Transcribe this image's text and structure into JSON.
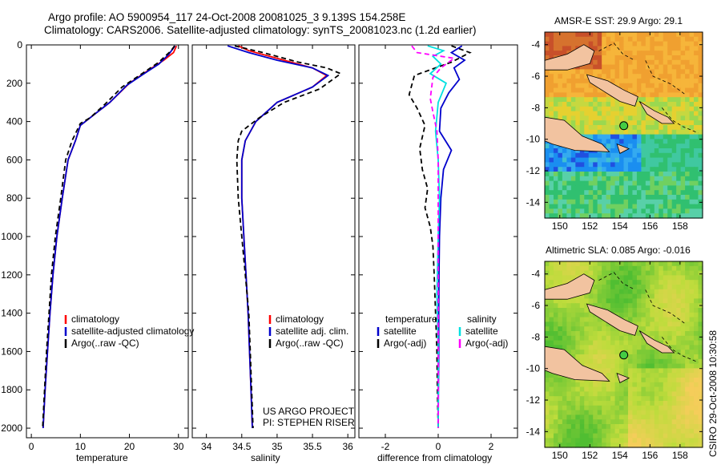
{
  "header": {
    "title_line1": "Argo profile: AO 5900954_117 24-Oct-2008 20081025_3 9.139S 154.258E",
    "title_line2": "Climatology: CARS2006. Satellite-adjusted climatology: synTS_20081023.nc (1.2d earlier)"
  },
  "credits": {
    "line1": "US ARGO PROJECT",
    "line2": "PI: STEPHEN RISER"
  },
  "side_stamp": "CSIRO 29-Oct-2008 10:30:58",
  "colors": {
    "climatology": "#ff0000",
    "satellite": "#0000cc",
    "argo": "#000000",
    "sat_salt": "#00e0e0",
    "argo_salt": "#ff00ff",
    "land": "#f2c3a0"
  },
  "chart_data": [
    {
      "type": "line",
      "name": "temperature-panel",
      "xlabel": "temperature",
      "ylabel": "",
      "xlim": [
        -1,
        32
      ],
      "ylim": [
        2050,
        0
      ],
      "xticks": [
        0,
        10,
        20,
        30
      ],
      "yticks": [
        0,
        200,
        400,
        600,
        800,
        1000,
        1200,
        1400,
        1600,
        1800,
        2000
      ],
      "legend": [
        "climatology",
        "satellite-adjusted climatology",
        "Argo(..raw -QC)"
      ],
      "series": [
        {
          "name": "climatology",
          "color": "red",
          "points": [
            [
              29.6,
              5
            ],
            [
              29,
              40
            ],
            [
              27,
              80
            ],
            [
              24,
              130
            ],
            [
              20,
              200
            ],
            [
              16,
              300
            ],
            [
              12,
              380
            ],
            [
              10,
              420
            ],
            [
              9,
              500
            ],
            [
              7.5,
              600
            ],
            [
              6.3,
              800
            ],
            [
              5.2,
              1000
            ],
            [
              4.4,
              1200
            ],
            [
              3.8,
              1400
            ],
            [
              3.3,
              1600
            ],
            [
              2.8,
              1800
            ],
            [
              2.4,
              2000
            ]
          ]
        },
        {
          "name": "satellite-adjusted climatology",
          "color": "blue",
          "points": [
            [
              29.3,
              5
            ],
            [
              28,
              50
            ],
            [
              26,
              100
            ],
            [
              23,
              150
            ],
            [
              19.5,
              210
            ],
            [
              16,
              300
            ],
            [
              12,
              380
            ],
            [
              10,
              420
            ],
            [
              9,
              500
            ],
            [
              7.5,
              600
            ],
            [
              6.3,
              800
            ],
            [
              5.2,
              1000
            ],
            [
              4.4,
              1200
            ],
            [
              3.8,
              1400
            ],
            [
              3.3,
              1600
            ],
            [
              2.8,
              1800
            ],
            [
              2.4,
              2000
            ]
          ]
        },
        {
          "name": "Argo(..raw -QC)",
          "color": "black",
          "points": [
            [
              29.2,
              5
            ],
            [
              28.5,
              30
            ],
            [
              26,
              90
            ],
            [
              22,
              160
            ],
            [
              18.5,
              220
            ],
            [
              15,
              310
            ],
            [
              12,
              380
            ],
            [
              10,
              410
            ],
            [
              8.3,
              500
            ],
            [
              7,
              600
            ],
            [
              6,
              800
            ],
            [
              4.9,
              1000
            ],
            [
              4.1,
              1200
            ],
            [
              3.6,
              1400
            ],
            [
              3.1,
              1600
            ],
            [
              2.7,
              1800
            ],
            [
              2.3,
              2000
            ]
          ]
        }
      ]
    },
    {
      "type": "line",
      "name": "salinity-panel",
      "xlabel": "salinity",
      "xlim": [
        33.8,
        36.1
      ],
      "ylim": [
        2050,
        0
      ],
      "xticks": [
        34,
        34.5,
        35,
        35.5,
        36
      ],
      "legend": [
        "climatology",
        "satellite adj. clim.",
        "Argo(..raw -QC)"
      ],
      "series": [
        {
          "name": "climatology",
          "color": "red",
          "points": [
            [
              34.45,
              5
            ],
            [
              34.6,
              30
            ],
            [
              35,
              70
            ],
            [
              35.5,
              120
            ],
            [
              35.7,
              160
            ],
            [
              35.5,
              220
            ],
            [
              35.0,
              300
            ],
            [
              34.7,
              400
            ],
            [
              34.55,
              500
            ],
            [
              34.5,
              600
            ],
            [
              34.5,
              800
            ],
            [
              34.53,
              1000
            ],
            [
              34.56,
              1200
            ],
            [
              34.59,
              1400
            ],
            [
              34.61,
              1600
            ],
            [
              34.63,
              1800
            ],
            [
              34.65,
              2000
            ]
          ]
        },
        {
          "name": "satellite adj. clim.",
          "color": "blue",
          "points": [
            [
              34.3,
              5
            ],
            [
              34.6,
              40
            ],
            [
              35,
              80
            ],
            [
              35.5,
              120
            ],
            [
              35.72,
              160
            ],
            [
              35.5,
              220
            ],
            [
              35.0,
              300
            ],
            [
              34.7,
              400
            ],
            [
              34.55,
              500
            ],
            [
              34.5,
              600
            ],
            [
              34.5,
              800
            ],
            [
              34.53,
              1000
            ],
            [
              34.56,
              1200
            ],
            [
              34.59,
              1400
            ],
            [
              34.61,
              1600
            ],
            [
              34.63,
              1800
            ],
            [
              34.65,
              2000
            ]
          ]
        },
        {
          "name": "Argo(..raw -QC)",
          "color": "black",
          "points": [
            [
              34.4,
              5
            ],
            [
              34.8,
              40
            ],
            [
              35.3,
              90
            ],
            [
              35.7,
              120
            ],
            [
              35.9,
              150
            ],
            [
              35.6,
              230
            ],
            [
              35.1,
              300
            ],
            [
              34.75,
              380
            ],
            [
              34.5,
              450
            ],
            [
              34.45,
              500
            ],
            [
              34.43,
              600
            ],
            [
              34.45,
              800
            ],
            [
              34.5,
              1000
            ],
            [
              34.55,
              1200
            ],
            [
              34.6,
              1400
            ],
            [
              34.62,
              1600
            ],
            [
              34.64,
              1800
            ],
            [
              34.66,
              2000
            ]
          ]
        }
      ]
    },
    {
      "type": "line",
      "name": "difference-panel",
      "xlabel": "difference from climatology",
      "xlim": [
        -3,
        3
      ],
      "ylim": [
        2050,
        0
      ],
      "xticks": [
        -2,
        0,
        2
      ],
      "legend_left": [
        "temperature",
        "satellite",
        "Argo(-adj)"
      ],
      "legend_right": [
        "salinity",
        "satellite",
        "Argo(-adj)"
      ],
      "series": [
        {
          "name": "temperature satellite",
          "color": "blue",
          "points": [
            [
              0.9,
              5
            ],
            [
              0.5,
              40
            ],
            [
              1.0,
              80
            ],
            [
              0.6,
              120
            ],
            [
              0.8,
              180
            ],
            [
              0.4,
              250
            ],
            [
              0.1,
              330
            ],
            [
              0.05,
              450
            ],
            [
              0.5,
              550
            ],
            [
              0.2,
              650
            ],
            [
              0.1,
              800
            ],
            [
              0.05,
              1000
            ],
            [
              0.03,
              1200
            ],
            [
              0.02,
              1400
            ],
            [
              0.02,
              1600
            ],
            [
              0.01,
              1800
            ],
            [
              0,
              2000
            ]
          ]
        },
        {
          "name": "temperature Argo(-adj)",
          "color": "black",
          "points": [
            [
              0.5,
              5
            ],
            [
              1.2,
              40
            ],
            [
              0.5,
              90
            ],
            [
              -0.9,
              160
            ],
            [
              -1.1,
              260
            ],
            [
              -0.8,
              330
            ],
            [
              -0.5,
              420
            ],
            [
              -0.7,
              540
            ],
            [
              -0.6,
              650
            ],
            [
              -0.4,
              750
            ],
            [
              -0.5,
              850
            ],
            [
              -0.3,
              950
            ],
            [
              -0.2,
              1050
            ],
            [
              -0.15,
              1200
            ],
            [
              -0.1,
              1400
            ],
            [
              -0.05,
              1600
            ],
            [
              -0.03,
              1800
            ],
            [
              0,
              2000
            ]
          ]
        },
        {
          "name": "salinity satellite",
          "color": "cyan",
          "points": [
            [
              -0.4,
              5
            ],
            [
              0.2,
              30
            ],
            [
              -0.2,
              60
            ],
            [
              0.1,
              100
            ],
            [
              -0.3,
              150
            ],
            [
              0.3,
              200
            ],
            [
              0,
              300
            ],
            [
              -0.1,
              450
            ],
            [
              0,
              600
            ],
            [
              0.05,
              800
            ],
            [
              0,
              1000
            ],
            [
              -0.05,
              1300
            ],
            [
              0,
              1600
            ],
            [
              0,
              2000
            ]
          ]
        },
        {
          "name": "salinity Argo(-adj)",
          "color": "magenta",
          "points": [
            [
              -1.0,
              5
            ],
            [
              -0.8,
              40
            ],
            [
              0.6,
              70
            ],
            [
              0.1,
              120
            ],
            [
              -0.2,
              170
            ],
            [
              -0.3,
              280
            ],
            [
              -0.2,
              350
            ],
            [
              -0.05,
              450
            ],
            [
              0,
              600
            ],
            [
              0,
              800
            ],
            [
              0,
              1000
            ],
            [
              0,
              1400
            ],
            [
              0,
              2000
            ]
          ]
        }
      ]
    },
    {
      "type": "heatmap",
      "name": "sst-map",
      "title": "AMSR-E SST: 29.9 Argo: 29.1",
      "xlim": [
        149,
        159.5
      ],
      "ylim": [
        -15,
        -3.2
      ],
      "xticks": [
        150,
        152,
        154,
        156,
        158
      ],
      "yticks": [
        -4,
        -6,
        -8,
        -10,
        -12,
        -14
      ],
      "argo_location": [
        154.258,
        -9.139
      ]
    },
    {
      "type": "heatmap",
      "name": "sla-map",
      "title": "Altimetric SLA: 0.085 Argo: -0.016",
      "xlim": [
        149,
        159.5
      ],
      "ylim": [
        -15,
        -3.2
      ],
      "xticks": [
        150,
        152,
        154,
        156,
        158
      ],
      "yticks": [
        -4,
        -6,
        -8,
        -10,
        -12,
        -14
      ],
      "argo_location": [
        154.258,
        -9.139
      ]
    }
  ]
}
